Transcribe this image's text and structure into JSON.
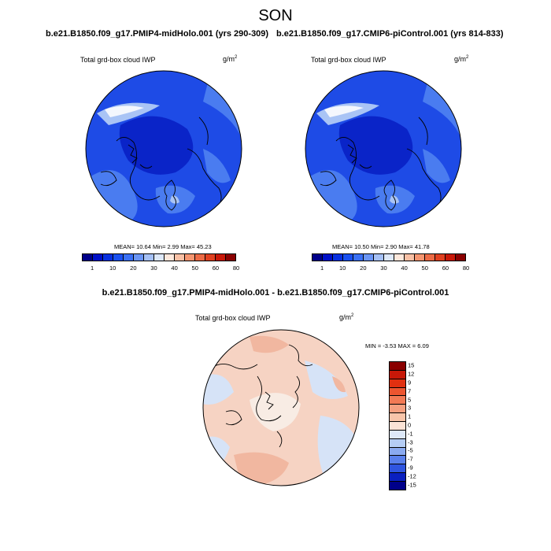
{
  "page": {
    "season": "SON",
    "left_run": "b.e21.B1850.f09_g17.PMIP4-midHolo.001 (yrs 290-309)",
    "right_run": "b.e21.B1850.f09_g17.CMIP6-piControl.001 (yrs 814-833)",
    "diff_title": "b.e21.B1850.f09_g17.PMIP4-midHolo.001 - b.e21.B1850.f09_g17.CMIP6-piControl.001"
  },
  "panels": [
    {
      "var_label": "Total grd-box cloud IWP",
      "units": "g/m",
      "units_exp": "2",
      "stats": "MEAN=  10.64  Min=   2.99  Max=  45.23"
    },
    {
      "var_label": "Total grd-box cloud IWP",
      "units": "g/m",
      "units_exp": "2",
      "stats": "MEAN=  10.50  Min=   2.90  Max=  41.78"
    },
    {
      "var_label": "Total grd-box cloud IWP",
      "units": "g/m",
      "units_exp": "2",
      "stats": "MIN =  -3.53 MAX =   6.09"
    }
  ],
  "colorbar_top": {
    "labels": [
      "1",
      "10",
      "20",
      "30",
      "40",
      "50",
      "60",
      "80"
    ],
    "colors": [
      "#00008a",
      "#0010c8",
      "#0830e0",
      "#1a50f0",
      "#3a70f5",
      "#6a95f5",
      "#a5c0f5",
      "#dde8f8",
      "#fde8dc",
      "#f8c0a5",
      "#f59570",
      "#ec6a45",
      "#e04020",
      "#c81808",
      "#8a0000"
    ]
  },
  "colorbar_diff": {
    "labels": [
      "15",
      "12",
      "9",
      "7",
      "5",
      "3",
      "1",
      "0",
      "-1",
      "-3",
      "-5",
      "-7",
      "-9",
      "-12",
      "-15"
    ],
    "colors": [
      "#8a0000",
      "#c81808",
      "#e03010",
      "#ec5530",
      "#f27a55",
      "#f5a080",
      "#f8c5aa",
      "#fbe3d6",
      "#dde8f8",
      "#b5cdf5",
      "#8aaaf0",
      "#5a80ec",
      "#2f55e0",
      "#0a20c0",
      "#00008a"
    ]
  },
  "map_colors": {
    "deep": "#0a24c8",
    "mid": "#1e4be6",
    "light": "#4a7cf0",
    "pale": "#a9c4f5",
    "white": "#f4f7fd",
    "d_base": "#f6d3c3",
    "d_warm": "#f1b7a0",
    "d_cool": "#d6e3f7",
    "d_pale": "#f8ece4"
  }
}
